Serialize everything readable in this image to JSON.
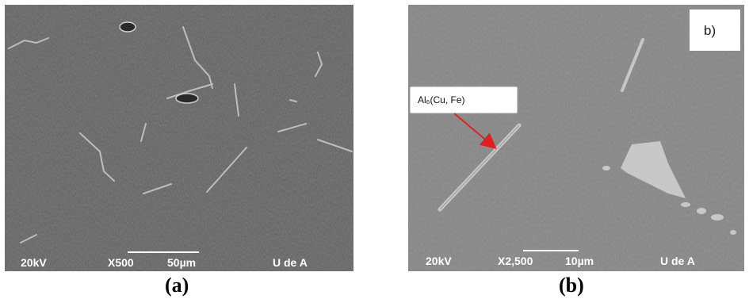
{
  "figure": {
    "panel_a": {
      "caption": "(a)",
      "databar": {
        "voltage": "20kV",
        "magnification": "X500",
        "scale": "50µm",
        "lab": "U de A"
      }
    },
    "panel_b": {
      "caption": "(b)",
      "tag": "b)",
      "annotation": "Al₆(Cu, Fe)",
      "annotation_color": "#e02020",
      "databar": {
        "voltage": "20kV",
        "magnification": "X2,500",
        "scale": "10µm",
        "lab": "U de A"
      }
    }
  }
}
